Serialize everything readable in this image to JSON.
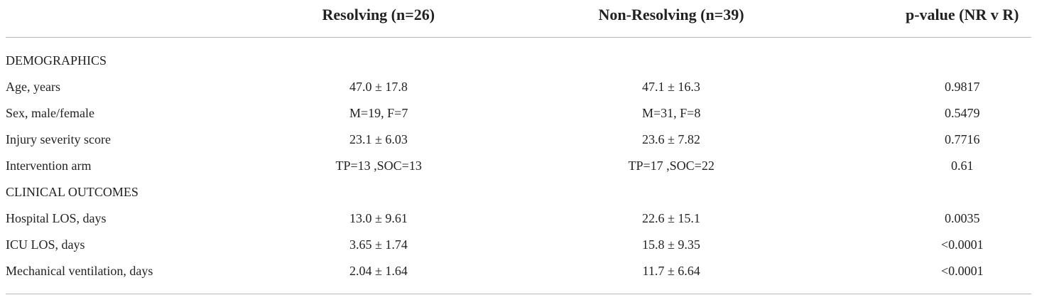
{
  "table": {
    "header": [
      "Resolving (n=26)",
      "Non-Resolving (n=39)",
      "p-value (NR v R)"
    ],
    "rows": [
      [
        "DEMOGRAPHICS"
      ],
      [
        "Age, years",
        "47.0 ± 17.8",
        "47.1 ± 16.3",
        "0.9817"
      ],
      [
        "Sex, male/female",
        "M=19, F=7",
        "M=31, F=8",
        "0.5479"
      ],
      [
        "Injury severity score",
        "23.1 ± 6.03",
        "23.6 ± 7.82",
        "0.7716"
      ],
      [
        "Intervention arm",
        "TP=13 ,SOC=13",
        "TP=17 ,SOC=22",
        "0.61"
      ],
      [
        "CLINICAL OUTCOMES"
      ],
      [
        "Hospital LOS, days",
        "13.0 ± 9.61",
        "22.6 ± 15.1",
        "0.0035"
      ],
      [
        "ICU LOS, days",
        "3.65 ± 1.74",
        "15.8 ± 9.35",
        "<0.0001"
      ],
      [
        "Mechanical ventilation, days",
        "2.04 ± 1.64",
        "11.7 ± 6.64",
        "<0.0001"
      ]
    ]
  }
}
